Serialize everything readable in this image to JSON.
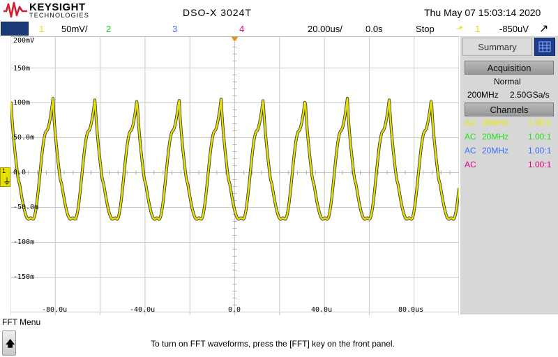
{
  "header": {
    "brand": "KEYSIGHT",
    "brand_sub": "TECHNOLOGIES",
    "model": "DSO-X 3024T",
    "datetime": "Thu May 07 15:03:14 2020"
  },
  "status_bar": {
    "ch1": "1",
    "ch1_scale": "50mV/",
    "ch2": "2",
    "ch3": "3",
    "ch4": "4",
    "timebase": "20.00us/",
    "delay": "0.0s",
    "run_state": "Stop",
    "trig_source": "1",
    "trig_level": "-850uV"
  },
  "ground_marker": {
    "channel": "1"
  },
  "screen": {
    "y_labels": [
      "200mV",
      "150m",
      "100m",
      "50.0m",
      "0.0",
      "-50.0m",
      "-100m",
      "-150m"
    ],
    "x_labels": [
      "-80.0u",
      "-40.0u",
      "0.0",
      "40.0u",
      "80.0us"
    ]
  },
  "panel": {
    "tab": "Summary",
    "acquisition_head": "Acquisition",
    "mode": "Normal",
    "bandwidth": "200MHz",
    "sample_rate": "2.50GSa/s",
    "channels_head": "Channels",
    "channels": [
      {
        "coupling": "AC",
        "bw": "20MHz",
        "probe": "1.00:1",
        "color": "#f0e800"
      },
      {
        "coupling": "AC",
        "bw": "20MHz",
        "probe": "1.00:1",
        "color": "#22dd22"
      },
      {
        "coupling": "AC",
        "bw": "20MHz",
        "probe": "1.00:1",
        "color": "#3a6cff"
      },
      {
        "coupling": "AC",
        "bw": "",
        "probe": "1.00:1",
        "color": "#e0007a"
      }
    ]
  },
  "colors": {
    "ch1": "#e8e000",
    "ch2": "#22cc22",
    "ch3": "#3a6cff",
    "ch4": "#e0007a",
    "logo": "#d31f30",
    "channel_button": "#1a3a7a"
  },
  "waveform": {
    "channel": "1",
    "period_us": 18.75,
    "peak_v": 0.107,
    "trough_v": -0.067
  },
  "fft": {
    "menu_title": "FFT Menu",
    "message": "To turn on FFT waveforms, press the [FFT] key on the front panel."
  }
}
